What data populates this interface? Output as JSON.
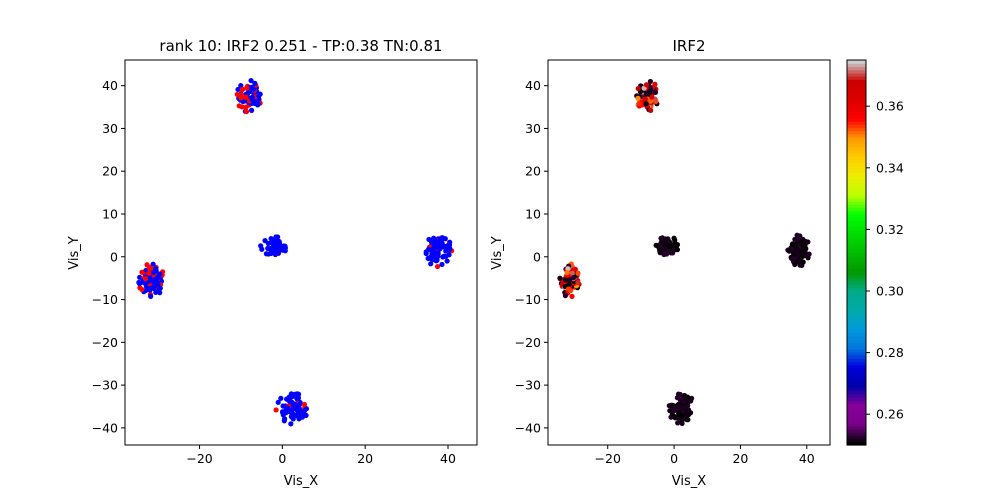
{
  "chart_data": [
    {
      "type": "scatter",
      "title": "rank 10: IRF2 0.251 - TP:0.38 TN:0.81",
      "xlabel": "Vis_X",
      "ylabel": "Vis_Y",
      "xlim": [
        -38,
        47
      ],
      "ylim": [
        -44,
        46
      ],
      "xticks": [
        -20,
        0,
        20,
        40
      ],
      "xtick_labels": [
        "−20",
        "0",
        "20",
        "40"
      ],
      "yticks": [
        -40,
        -30,
        -20,
        -10,
        0,
        10,
        20,
        30,
        40
      ],
      "ytick_labels": [
        "−40",
        "−30",
        "−20",
        "−10",
        "0",
        "10",
        "20",
        "30",
        "40"
      ],
      "colors": {
        "negative": "#0000ff",
        "positive": "#ff0000"
      },
      "clusters": [
        {
          "center": [
            -8,
            37.5
          ],
          "spread": [
            3.3,
            3.7
          ],
          "count": 70,
          "positive_fraction": 0.38
        },
        {
          "center": [
            -31.5,
            -5.5
          ],
          "spread": [
            3.2,
            3.8
          ],
          "count": 95,
          "positive_fraction": 0.35
        },
        {
          "center": [
            -2,
            2.5
          ],
          "spread": [
            3.4,
            2.2
          ],
          "count": 65,
          "positive_fraction": 0.03
        },
        {
          "center": [
            37.5,
            1.5
          ],
          "spread": [
            3.4,
            3.8
          ],
          "count": 85,
          "positive_fraction": 0.07
        },
        {
          "center": [
            2.5,
            -35.5
          ],
          "spread": [
            4.0,
            3.8
          ],
          "count": 80,
          "positive_fraction": 0.12
        }
      ]
    },
    {
      "type": "scatter",
      "title": "IRF2",
      "xlabel": "Vis_X",
      "ylabel": "Vis_Y",
      "xlim": [
        -38,
        47
      ],
      "ylim": [
        -44,
        46
      ],
      "xticks": [
        -20,
        0,
        20,
        40
      ],
      "xtick_labels": [
        "−20",
        "0",
        "20",
        "40"
      ],
      "yticks": [
        -40,
        -30,
        -20,
        -10,
        0,
        10,
        20,
        30,
        40
      ],
      "ytick_labels": [
        "−40",
        "−30",
        "−20",
        "−10",
        "0",
        "10",
        "20",
        "30",
        "40"
      ],
      "colormap": "nipy_spectral",
      "colorbar": {
        "range": [
          0.25,
          0.375
        ],
        "ticks": [
          0.26,
          0.28,
          0.3,
          0.32,
          0.34,
          0.36
        ],
        "tick_labels": [
          "0.26",
          "0.28",
          "0.30",
          "0.32",
          "0.34",
          "0.36"
        ]
      },
      "clusters": [
        {
          "center": [
            -8,
            37.5
          ],
          "spread": [
            3.3,
            3.7
          ],
          "count": 70,
          "value_range": [
            0.25,
            0.375
          ],
          "high_fraction": 0.55
        },
        {
          "center": [
            -31.5,
            -5.5
          ],
          "spread": [
            3.2,
            3.8
          ],
          "count": 95,
          "value_range": [
            0.25,
            0.375
          ],
          "high_fraction": 0.6
        },
        {
          "center": [
            -2,
            2.5
          ],
          "spread": [
            3.4,
            2.2
          ],
          "count": 65,
          "value_range": [
            0.25,
            0.25
          ],
          "high_fraction": 0.0
        },
        {
          "center": [
            37.5,
            1.5
          ],
          "spread": [
            3.4,
            3.8
          ],
          "count": 85,
          "value_range": [
            0.25,
            0.25
          ],
          "high_fraction": 0.0
        },
        {
          "center": [
            2.5,
            -35.5
          ],
          "spread": [
            4.0,
            3.8
          ],
          "count": 80,
          "value_range": [
            0.25,
            0.25
          ],
          "high_fraction": 0.02
        }
      ]
    }
  ]
}
